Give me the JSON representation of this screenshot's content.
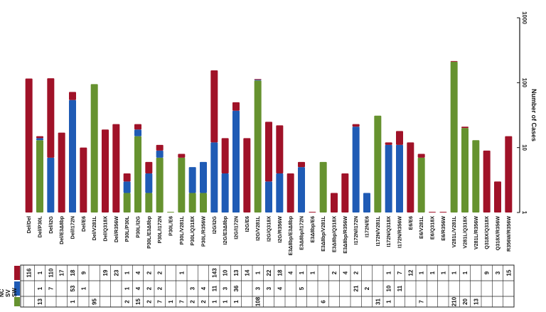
{
  "chart_data": {
    "type": "bar",
    "stacked": true,
    "orientation": "rotated-90-clockwise",
    "yscale": "log",
    "ylim": [
      1,
      1000
    ],
    "yticks": [
      "1",
      "10",
      "100",
      "1000"
    ],
    "ylabel": "Number of Cases",
    "series_keys": [
      "SW",
      "SV",
      "NC"
    ],
    "colors": {
      "SW": "#a01228",
      "SV": "#1f5bb5",
      "NC": "#66922f"
    },
    "categories": [
      "Del/Del",
      "Del/P30L",
      "Del/I2G",
      "Del/E3Δ8bp",
      "Del/I172N",
      "Del/E6",
      "Del/V281L",
      "Del/Q318X",
      "Del/R356W",
      "P30L/P30L",
      "P30L/I2G",
      "P30L/E3Δ8bp",
      "P30L/I172N",
      "P30L/E6",
      "P30L/V281L",
      "P30L/Q318X",
      "P30L/R356W",
      "I2G/I2G",
      "I2G/E3Δ8bp",
      "I2G/I172N",
      "I2G/E6",
      "I2G/V281L",
      "I2G/Q318X",
      "I2G/R356W",
      "E3Δ8bp/E3Δ8bp",
      "E3Δ8bp/I172N",
      "E3Δ8bp/E6",
      "E3Δ8bp/V281L",
      "E3Δ8bp/Q318X",
      "E3Δ8bp/R356W",
      "I172N/I172N",
      "I172N/E6",
      "I172N/V281L",
      "I172N/Q318X",
      "I172N/R356W",
      "E6/E6",
      "E6/V281L",
      "E6/Q318X",
      "E6/R356W",
      "V281L/V281L",
      "V281L/Q318X",
      "V281L/R356W",
      "Q318X/Q318X",
      "Q318X/R356W",
      "R356W/R356W"
    ],
    "series": [
      {
        "name": "SW",
        "values": [
          "116",
          "1",
          "110",
          "17",
          "18",
          "9",
          "",
          "19",
          "23",
          "1",
          "4",
          "2",
          "2",
          "",
          "1",
          "",
          "",
          "143",
          "10",
          "13",
          "14",
          "1",
          "22",
          "18",
          "4",
          "1",
          "1",
          "",
          "2",
          "4",
          "2",
          "",
          "",
          "1",
          "7",
          "12",
          "1",
          "1",
          "1",
          "1",
          "1",
          "",
          "9",
          "3",
          "15"
        ]
      },
      {
        "name": "SV",
        "values": [
          "",
          "1",
          "7",
          "",
          "53",
          "1",
          "",
          "",
          "",
          "1",
          "4",
          "2",
          "2",
          "",
          "",
          "3",
          "4",
          "11",
          "3",
          "36",
          "",
          "3",
          "3",
          "4",
          "",
          "5",
          "",
          "",
          "",
          "",
          "21",
          "2",
          "",
          "10",
          "11",
          "",
          "",
          "",
          "",
          "",
          "",
          "",
          "",
          "",
          ""
        ]
      },
      {
        "name": "NC",
        "values": [
          "",
          "13",
          "",
          "",
          "1",
          "",
          "95",
          "",
          "",
          "2",
          "15",
          "2",
          "7",
          "1",
          "7",
          "2",
          "2",
          "1",
          "1",
          "1",
          "",
          "108",
          "",
          "",
          "",
          "",
          "",
          "6",
          "",
          "",
          "",
          "",
          "31",
          "1",
          "",
          "",
          "7",
          "",
          "",
          "210",
          "20",
          "13",
          "",
          "",
          ""
        ]
      }
    ],
    "table_row_labels": [
      "SW",
      "SV",
      "NC"
    ],
    "table_axis_labels": [
      "NC",
      "SV",
      "SW"
    ]
  }
}
